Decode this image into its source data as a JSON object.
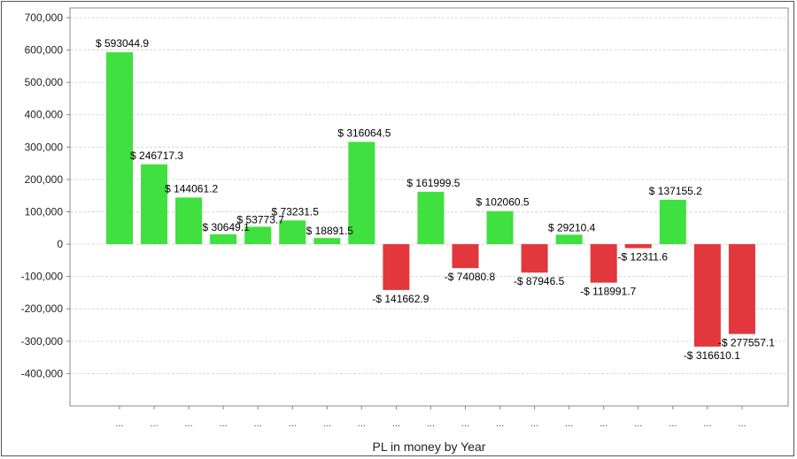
{
  "chart_data": {
    "type": "bar",
    "title": "",
    "xlabel": "PL in money by Year",
    "ylabel": "",
    "ylim": [
      -500000,
      730000
    ],
    "yticks": [
      700000,
      600000,
      500000,
      400000,
      300000,
      200000,
      100000,
      0,
      -100000,
      -200000,
      -300000,
      -400000
    ],
    "ytick_labels": [
      "700,000",
      "600,000",
      "500,000",
      "400,000",
      "300,000",
      "200,000",
      "100,000",
      "0",
      "-100,000",
      "-200,000",
      "-300,000",
      "-400,000"
    ],
    "grid": true,
    "categories": [
      "...",
      "...",
      "...",
      "...",
      "...",
      "...",
      "...",
      "...",
      "...",
      "...",
      "...",
      "...",
      "...",
      "...",
      "...",
      "...",
      "...",
      "...",
      "..."
    ],
    "values": [
      593044.9,
      246717.3,
      144061.2,
      30649.1,
      53773.7,
      73231.5,
      18891.5,
      316064.5,
      -141662.9,
      161999.5,
      -74080.8,
      102060.5,
      -87946.5,
      29210.4,
      -118991.7,
      -12311.6,
      137155.2,
      -316610.1,
      -277557.1
    ],
    "data_labels": [
      "$ 593044.9",
      "$ 246717.3",
      "$ 144061.2",
      "$ 30649.1",
      "$ 53773.7",
      "$ 73231.5",
      "$ 18891.5",
      "$ 316064.5",
      "-$ 141662.9",
      "$ 161999.5",
      "-$ 74080.8",
      "$ 102060.5",
      "-$ 87946.5",
      "$ 29210.4",
      "-$ 118991.7",
      "-$ 12311.6",
      "$ 137155.2",
      "-$ 316610.1",
      "-$ 277557.1"
    ],
    "colors": {
      "positive": "#3fe03f",
      "negative": "#e2373c",
      "grid": "#d6d6d6",
      "axis": "#888888"
    }
  }
}
